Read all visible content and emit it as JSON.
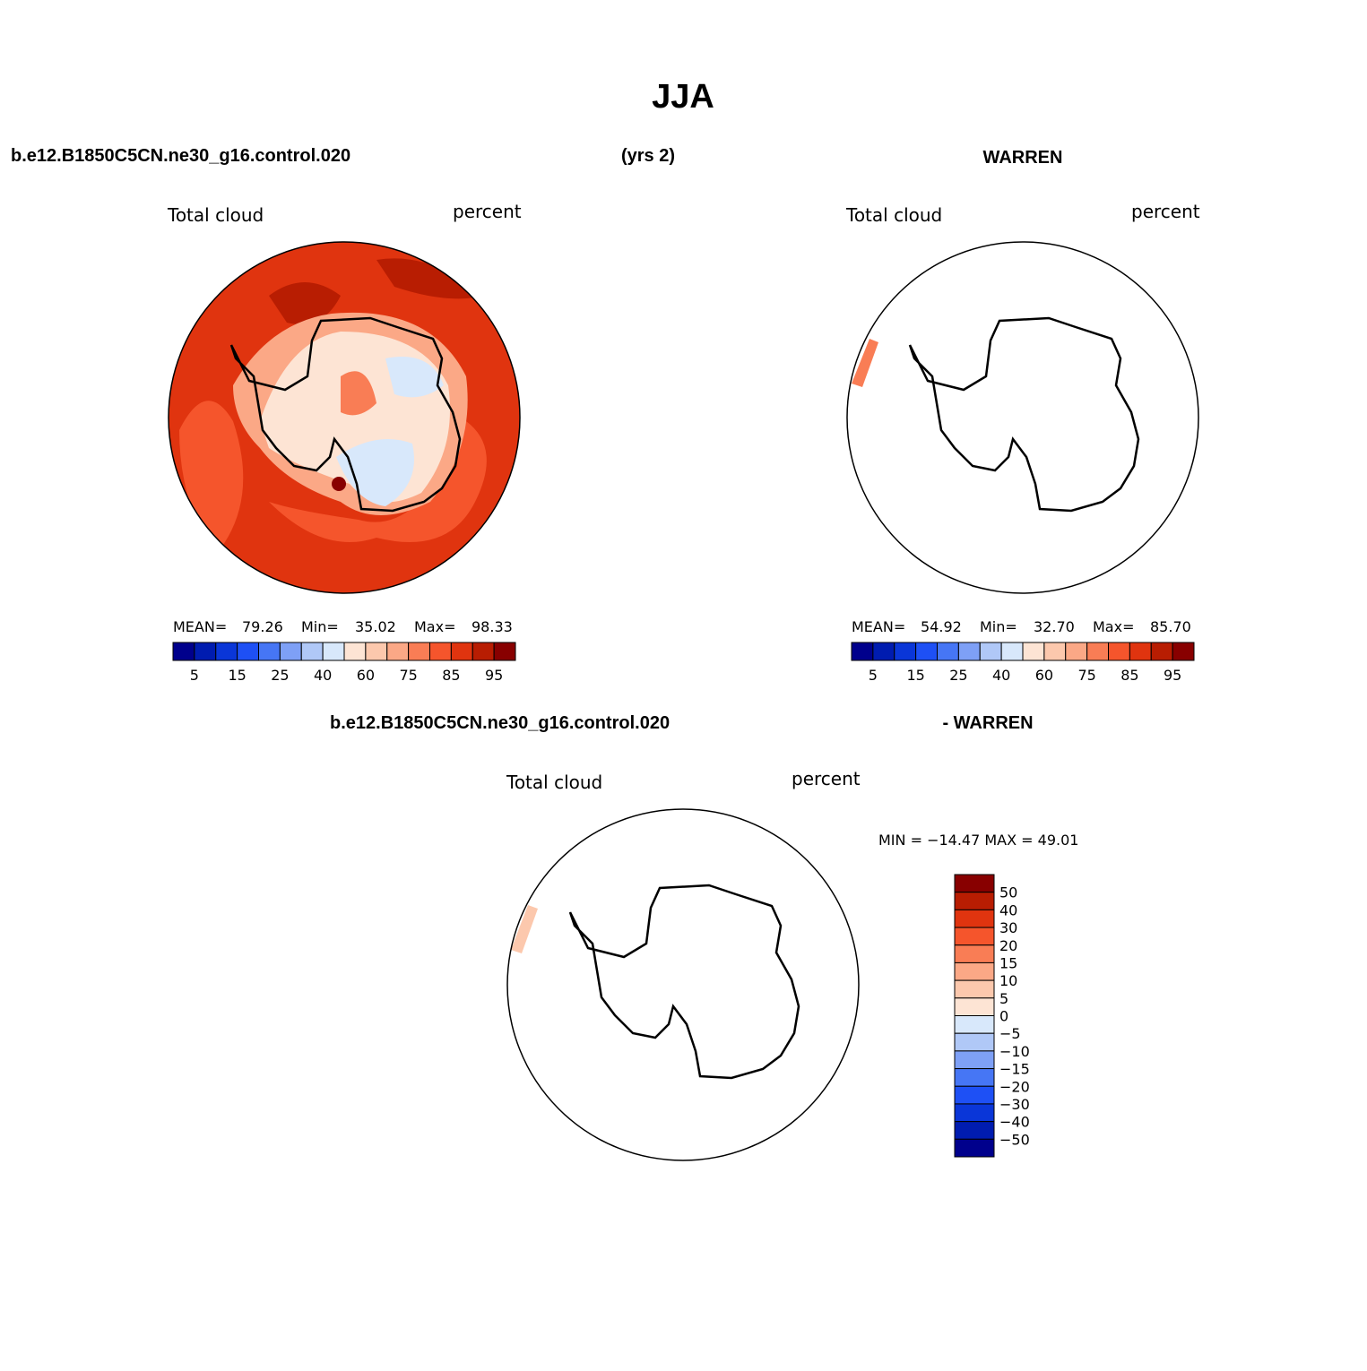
{
  "header": {
    "title": "JJA",
    "case_name": "b.e12.B1850C5CN.ne30_g16.control.020",
    "years": "(yrs 2)",
    "obs_name": "WARREN"
  },
  "panels": [
    {
      "left_title": "Total cloud",
      "right_title": "percent",
      "stats": [
        {
          "label": "MEAN=",
          "value": "79.26"
        },
        {
          "label": "Min=",
          "value": "35.02"
        },
        {
          "label": "Max=",
          "value": "98.33"
        }
      ]
    },
    {
      "left_title": "Total cloud",
      "right_title": "percent",
      "stats": [
        {
          "label": "MEAN=",
          "value": "54.92"
        },
        {
          "label": "Min=",
          "value": "32.70"
        },
        {
          "label": "Max=",
          "value": "85.70"
        }
      ]
    }
  ],
  "colorbar": {
    "colors": [
      "#00008c",
      "#001cb0",
      "#0a36d8",
      "#1e50f5",
      "#4676f5",
      "#7ea0f6",
      "#b0c8f7",
      "#d8e8fb",
      "#fde4d4",
      "#fcc8ad",
      "#fba886",
      "#f97d55",
      "#f5552c",
      "#e0340f",
      "#b81d02",
      "#880000"
    ],
    "labels": [
      "5",
      "15",
      "25",
      "40",
      "60",
      "75",
      "85",
      "95"
    ]
  },
  "difference": {
    "case_name": "b.e12.B1850C5CN.ne30_g16.control.020",
    "obs_name": "- WARREN",
    "left_title": "Total cloud",
    "right_title": "percent",
    "min_max": "MIN = −14.47 MAX =  49.01",
    "colorbar_labels": [
      "50",
      "40",
      "30",
      "20",
      "15",
      "10",
      "5",
      "0",
      "−5",
      "−10",
      "−15",
      "−20",
      "−30",
      "−40",
      "−50"
    ]
  }
}
